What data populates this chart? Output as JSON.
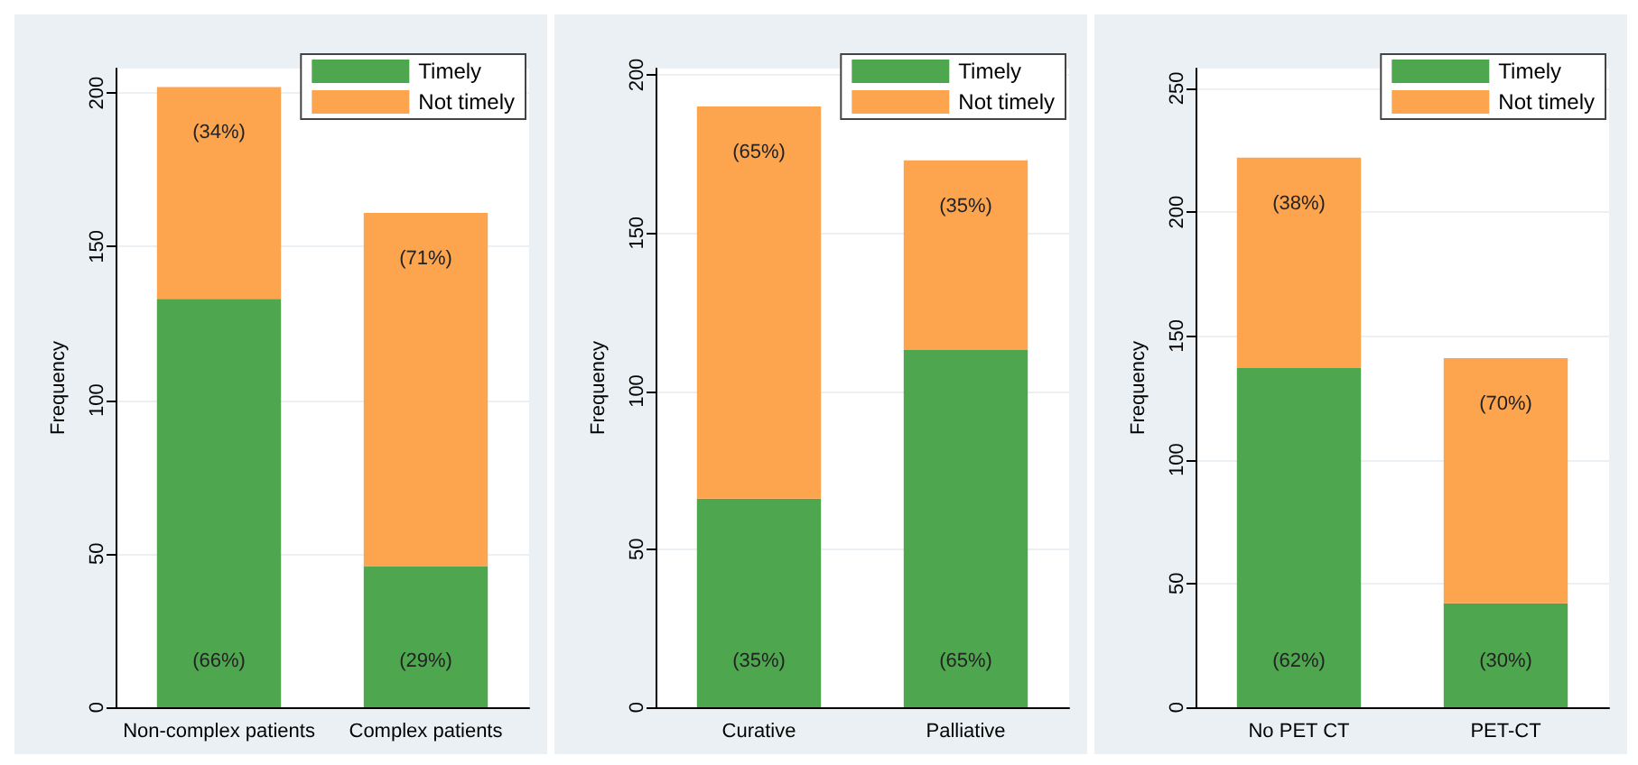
{
  "chart_data": [
    {
      "type": "bar",
      "stacked": true,
      "ylabel": "Frequency",
      "categories": [
        "Non-complex patients",
        "Complex patients"
      ],
      "ylim": [
        0,
        208
      ],
      "yticks": [
        0,
        50,
        100,
        150,
        200
      ],
      "grid": "y",
      "legend": "top right",
      "series": [
        {
          "name": "Timely",
          "color": "#4ea64e",
          "values": [
            133,
            46
          ]
        },
        {
          "name": "Not timely",
          "color": "#fda44e",
          "values": [
            69,
            115
          ]
        }
      ],
      "annotations": [
        "(66%)",
        "(29%)",
        "(34%)",
        "(71%)"
      ]
    },
    {
      "type": "bar",
      "stacked": true,
      "ylabel": "Frequency",
      "categories": [
        "Curative",
        "Palliative"
      ],
      "ylim": [
        0,
        202
      ],
      "yticks": [
        0,
        50,
        100,
        150,
        200
      ],
      "grid": "y",
      "legend": "top right",
      "series": [
        {
          "name": "Timely",
          "color": "#4ea64e",
          "values": [
            66,
            113
          ]
        },
        {
          "name": "Not timely",
          "color": "#fda44e",
          "values": [
            124,
            60
          ]
        }
      ],
      "annotations": [
        "(35%)",
        "(65%)",
        "(65%)",
        "(35%)"
      ]
    },
    {
      "type": "bar",
      "stacked": true,
      "ylabel": "Frequency",
      "categories": [
        "No PET CT",
        "PET-CT"
      ],
      "ylim": [
        0,
        258
      ],
      "yticks": [
        0,
        50,
        100,
        150,
        200,
        250
      ],
      "grid": "y",
      "legend": "top right",
      "series": [
        {
          "name": "Timely",
          "color": "#4ea64e",
          "values": [
            137,
            42
          ]
        },
        {
          "name": "Not timely",
          "color": "#fda44e",
          "values": [
            85,
            99
          ]
        }
      ],
      "annotations": [
        "(62%)",
        "(30%)",
        "(38%)",
        "(70%)"
      ]
    }
  ]
}
